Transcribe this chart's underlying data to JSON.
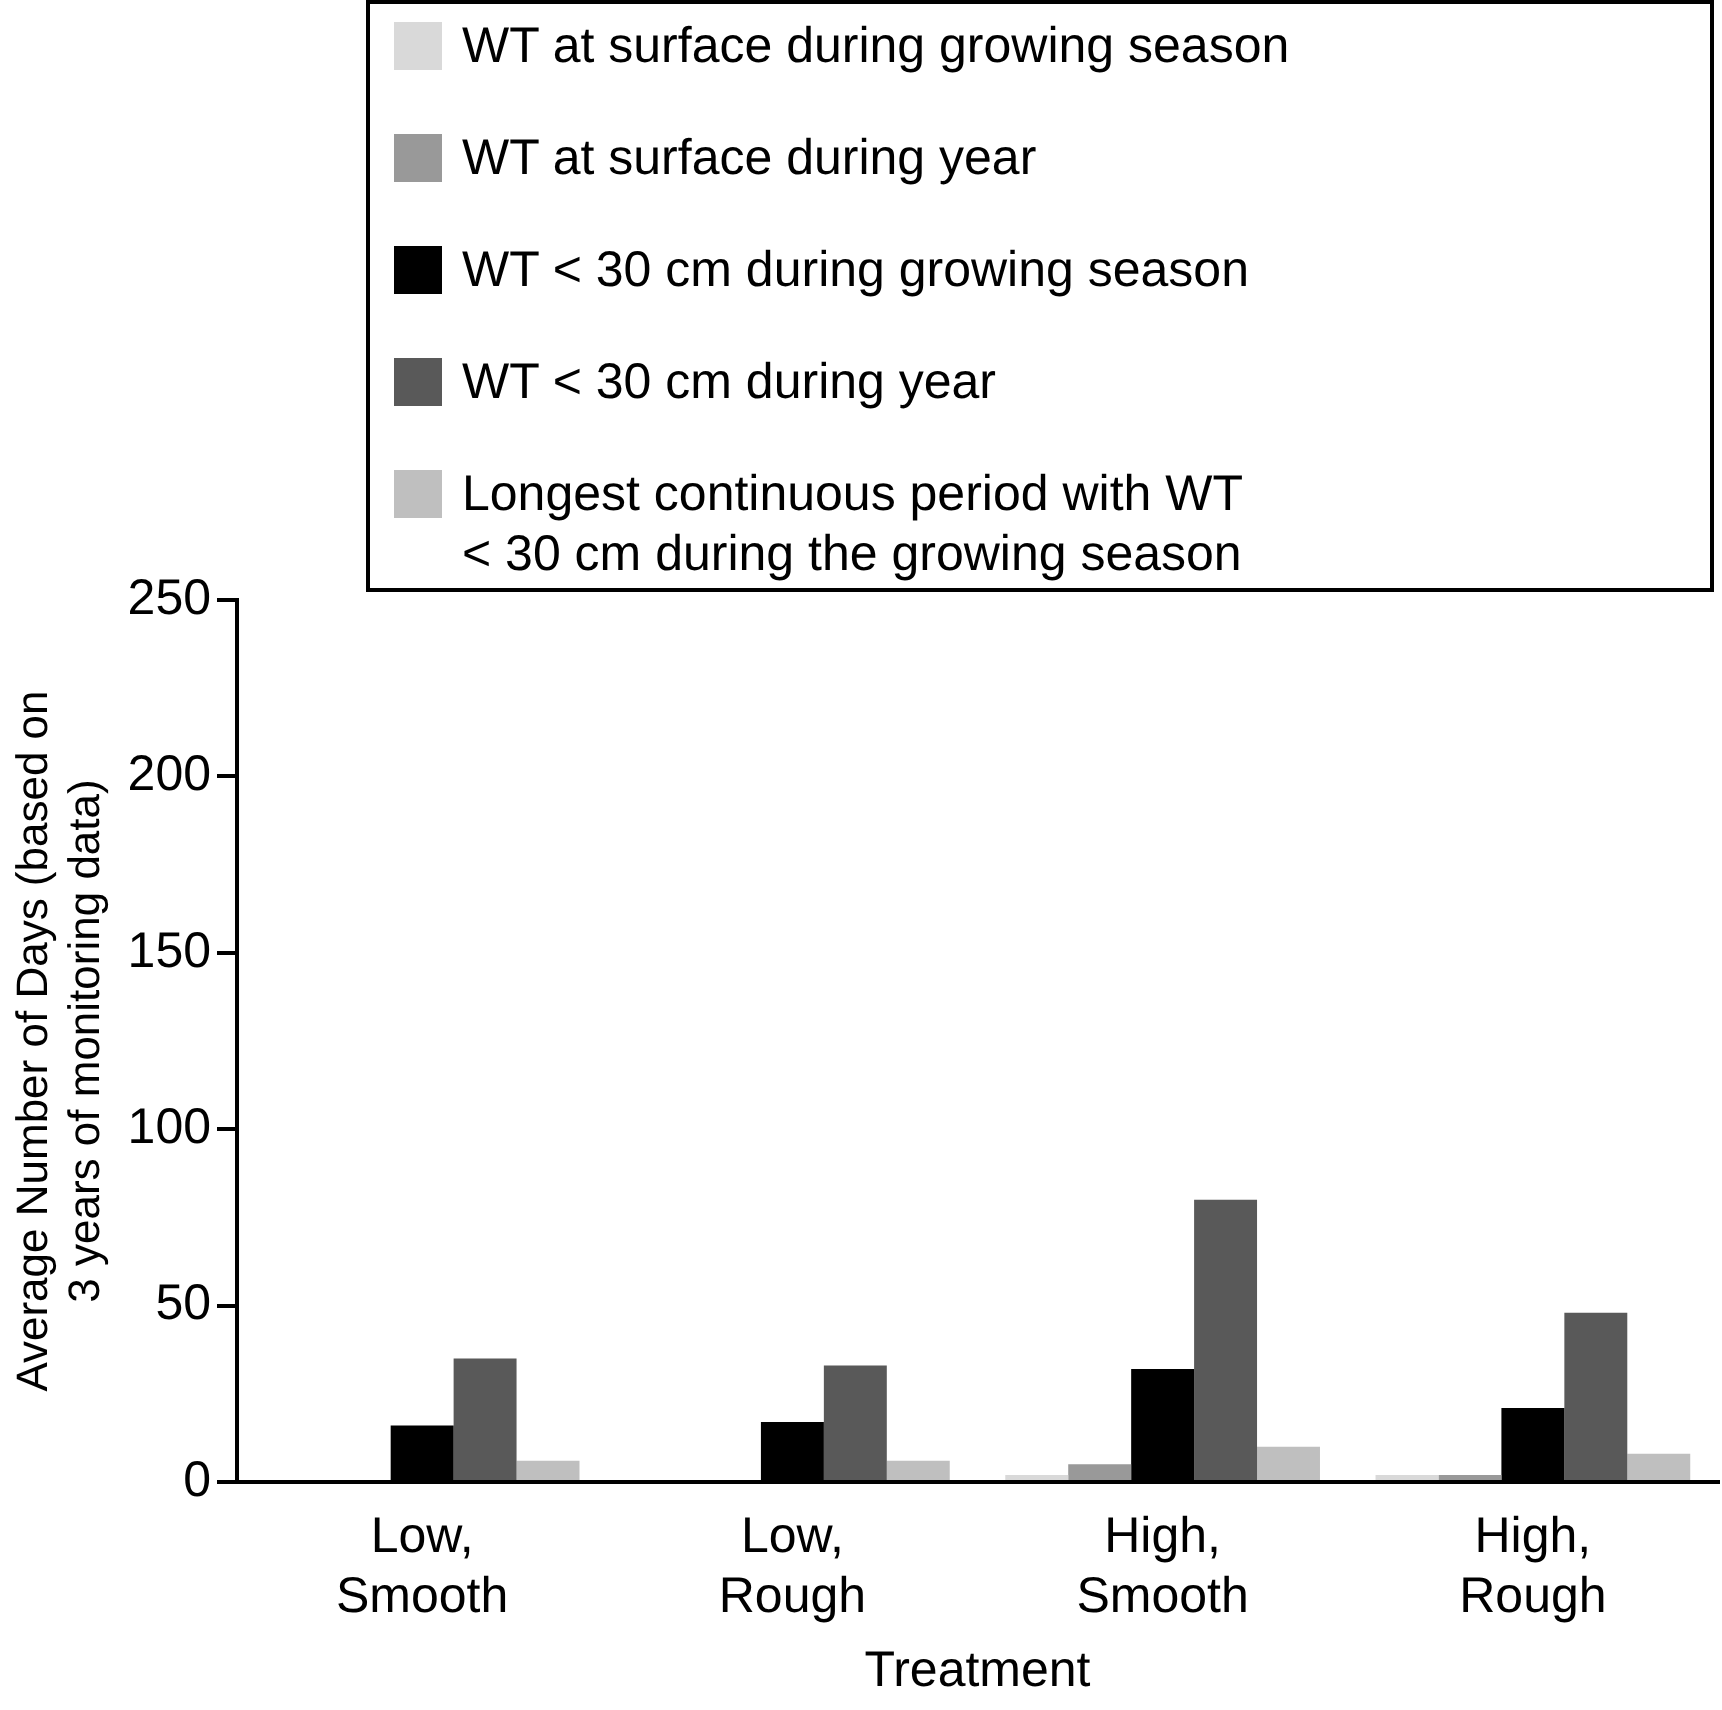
{
  "chart_data": {
    "type": "bar",
    "xlabel": "Treatment",
    "ylabel": "Average Number of Days (based on\n3 years of monitoring data)",
    "categories": [
      "Low,\nSmooth",
      "Low,\nRough",
      "High,\nSmooth",
      "High,\nRough"
    ],
    "series": [
      {
        "name": "WT at surface during growing season",
        "color": "#d9d9d9",
        "values": [
          0,
          0,
          2,
          2
        ]
      },
      {
        "name": "WT at surface during year",
        "color": "#999999",
        "values": [
          0,
          0,
          5,
          2
        ]
      },
      {
        "name": "WT < 30 cm during growing season",
        "color": "#000000",
        "values": [
          16,
          17,
          32,
          21
        ]
      },
      {
        "name": "WT < 30 cm during year",
        "color": "#595959",
        "values": [
          35,
          33,
          80,
          48
        ]
      },
      {
        "name": "Longest continuous period with WT\n< 30 cm during the growing season",
        "color": "#bfbfbf",
        "values": [
          6,
          6,
          10,
          8
        ]
      }
    ],
    "ylim": [
      0,
      250
    ],
    "yticks": [
      0,
      50,
      100,
      150,
      200,
      250
    ],
    "grid": false,
    "legend": "top"
  }
}
